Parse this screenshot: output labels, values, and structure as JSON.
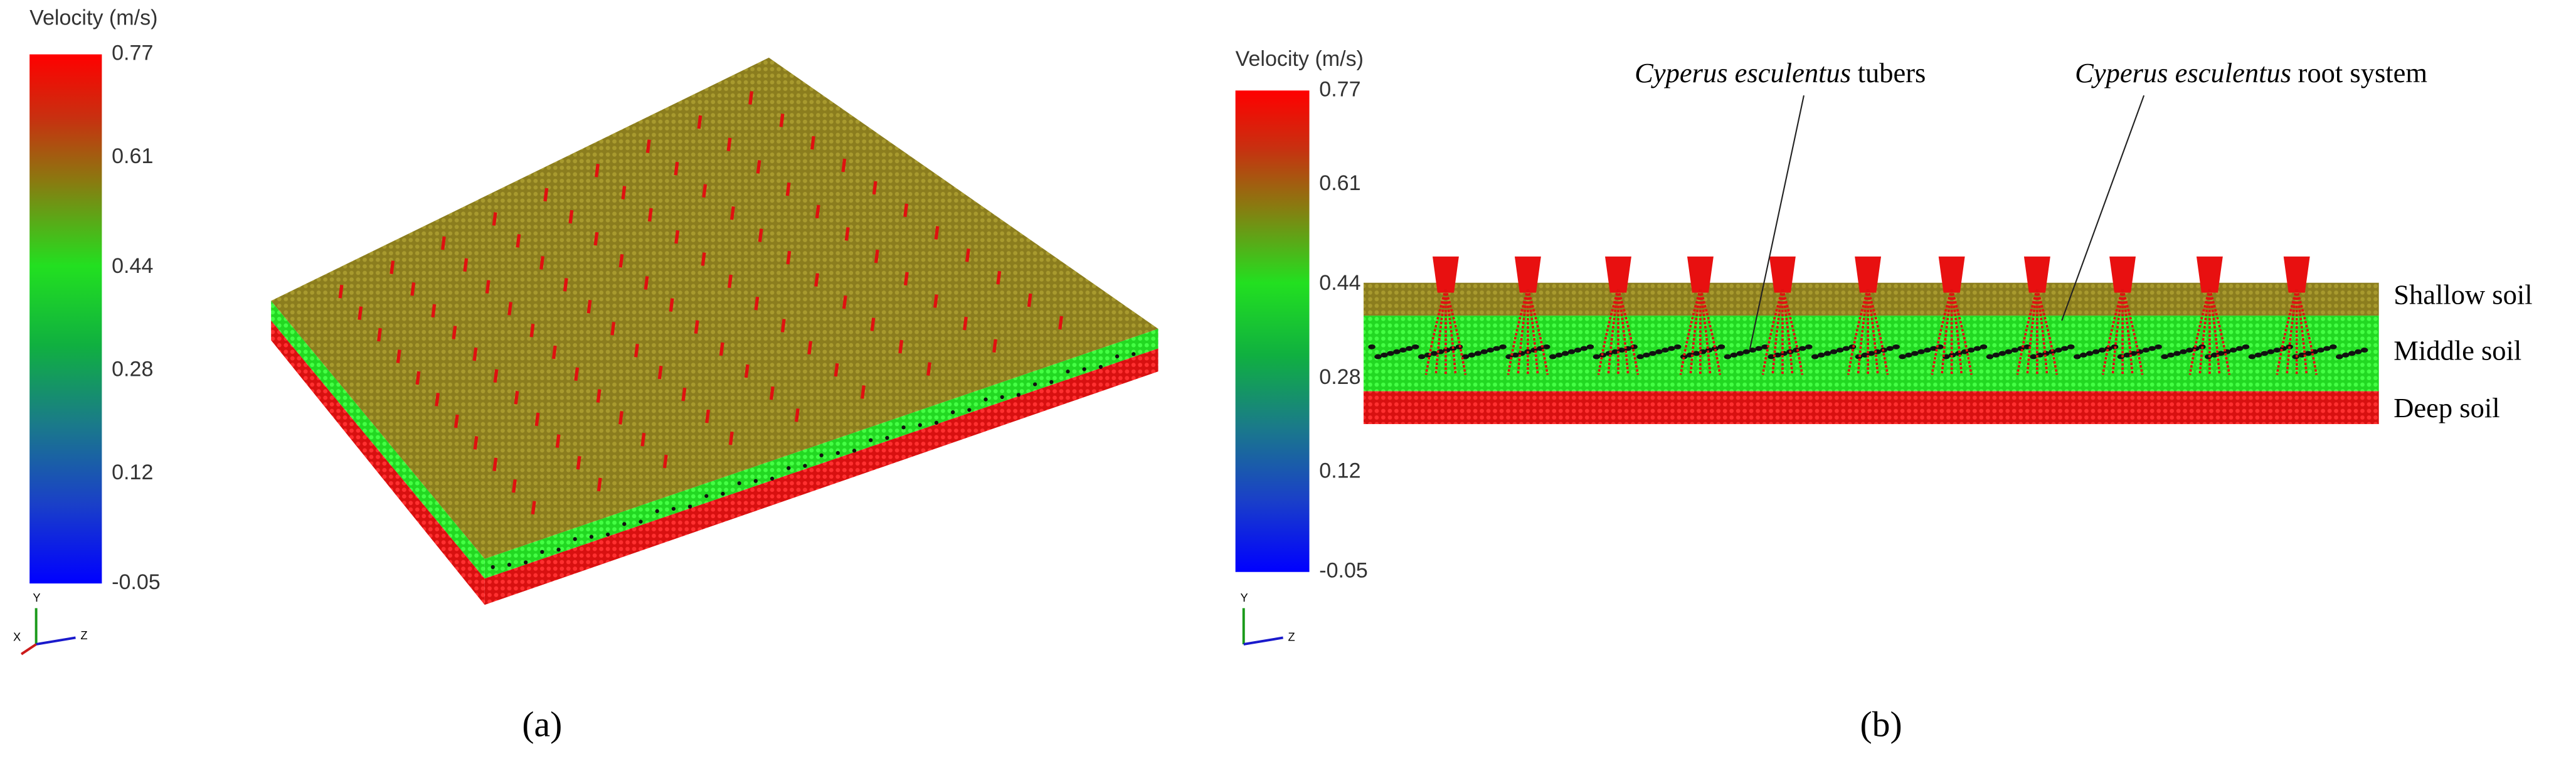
{
  "panels": [
    {
      "label": "(a)",
      "colorbar": {
        "title": "Velocity (m/s)",
        "lim": [
          -0.05,
          0.77
        ],
        "ticks": [
          0.77,
          0.61,
          0.44,
          0.28,
          0.12,
          -0.05
        ]
      },
      "triad": [
        "Y",
        "X",
        "Z"
      ]
    },
    {
      "label": "(b)",
      "colorbar": {
        "title": "Velocity (m/s)",
        "lim": [
          -0.05,
          0.77
        ],
        "ticks": [
          0.77,
          0.61,
          0.44,
          0.28,
          0.12,
          -0.05
        ]
      },
      "triad": [
        "Y",
        "Z"
      ],
      "annotations": [
        {
          "species": "Cyperus esculentus",
          "text": "tubers"
        },
        {
          "species": "Cyperus esculentus",
          "text": "root system"
        }
      ],
      "layers": [
        "Shallow soil",
        "Middle soil",
        "Deep soil"
      ]
    }
  ]
}
